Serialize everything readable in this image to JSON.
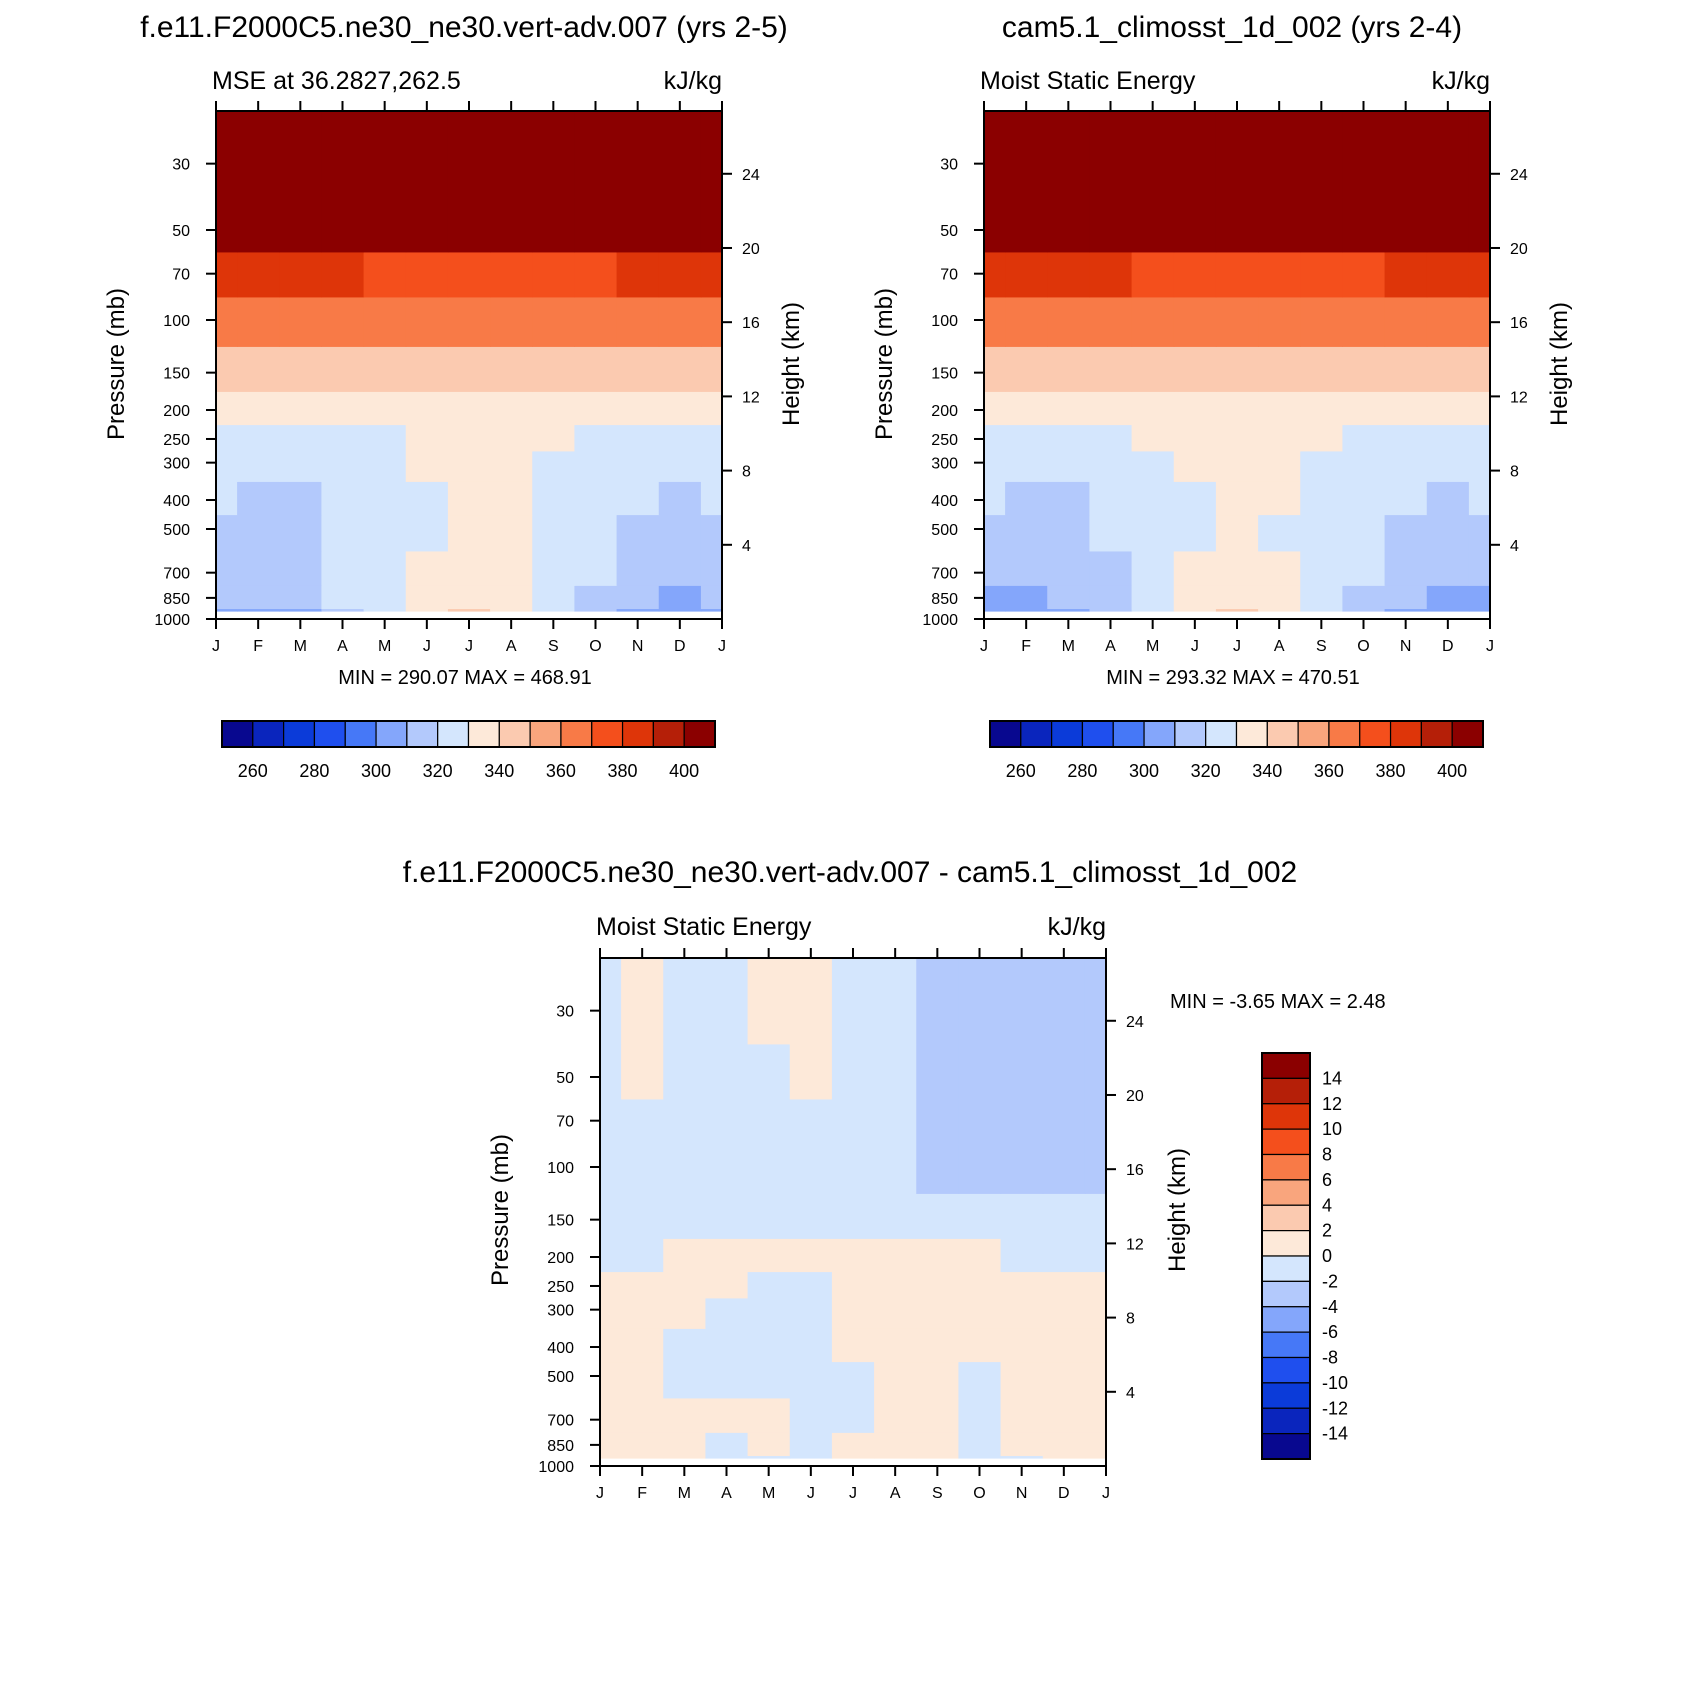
{
  "figure": {
    "months": [
      "J",
      "F",
      "M",
      "A",
      "M",
      "J",
      "J",
      "A",
      "S",
      "O",
      "N",
      "D",
      "J"
    ],
    "pressure_ticks": [
      "30",
      "50",
      "70",
      "100",
      "150",
      "200",
      "250",
      "300",
      "400",
      "500",
      "700",
      "850",
      "1000"
    ],
    "height_ticks": [
      "24",
      "20",
      "16",
      "12",
      "8",
      "4"
    ],
    "ylabel_left": "Pressure (mb)",
    "ylabel_right": "Height (km)",
    "colors_mse": [
      "#08088f",
      "#0a25bd",
      "#0b3bd9",
      "#1f4fee",
      "#4678f7",
      "#84a6fb",
      "#b3c9fc",
      "#d4e6fd",
      "#fde9d9",
      "#fbcab0",
      "#f9a57d",
      "#f87a47",
      "#f44f1c",
      "#de3509",
      "#b51f08",
      "#8b0000"
    ],
    "colors_diff": [
      "#08088f",
      "#0a25bd",
      "#0b3bd9",
      "#1f4fee",
      "#4678f7",
      "#84a6fb",
      "#b3c9fc",
      "#d4e6fd",
      "#fde9d9",
      "#fbcab0",
      "#f9a57d",
      "#f87a47",
      "#f44f1c",
      "#de3509",
      "#b51f08",
      "#8b0000"
    ]
  },
  "panels": [
    {
      "panel_title": "f.e11.F2000C5.ne30_ne30.vert-adv.007 (yrs 2-5)",
      "left_label": "MSE at 36.2827,262.5",
      "units": "kJ/kg",
      "stats": "MIN = 290.07 MAX = 468.91",
      "colorbar_labels": [
        "260",
        "280",
        "300",
        "320",
        "340",
        "360",
        "380",
        "400"
      ]
    },
    {
      "panel_title": "cam5.1_climosst_1d_002 (yrs 2-4)",
      "left_label": "Moist Static Energy",
      "units": "kJ/kg",
      "stats": "MIN = 293.32 MAX = 470.51",
      "colorbar_labels": [
        "260",
        "280",
        "300",
        "320",
        "340",
        "360",
        "380",
        "400"
      ]
    },
    {
      "panel_title": "f.e11.F2000C5.ne30_ne30.vert-adv.007 - cam5.1_climosst_1d_002",
      "left_label": "Moist Static Energy",
      "units": "kJ/kg",
      "stats": "MIN =  -3.65 MAX =   2.48",
      "colorbar_labels": [
        "14",
        "12",
        "10",
        "8",
        "6",
        "4",
        "2",
        "0",
        "-2",
        "-4",
        "-6",
        "-8",
        "-10",
        "-12",
        "-14"
      ]
    }
  ],
  "chart_data": [
    {
      "type": "heatmap",
      "title": "f.e11.F2000C5.ne30_ne30.vert-adv.007 (yrs 2-5)",
      "subtitle": "MSE at 36.2827,262.5",
      "units": "kJ/kg",
      "xlabel": "",
      "ylabel": "Pressure (mb)",
      "ylabel_right": "Height (km)",
      "x": [
        "J",
        "F",
        "M",
        "A",
        "M",
        "J",
        "J",
        "A",
        "S",
        "O",
        "N",
        "D",
        "J"
      ],
      "y": [
        1000,
        850,
        700,
        500,
        400,
        300,
        250,
        200,
        150,
        100,
        70,
        50,
        30
      ],
      "levels": [
        260,
        270,
        280,
        290,
        300,
        310,
        320,
        330,
        340,
        350,
        360,
        370,
        380,
        390,
        400
      ],
      "min": 290.07,
      "max": 468.91,
      "values": [
        [
          306,
          306,
          309,
          318,
          328,
          337,
          342,
          339,
          327,
          315,
          309,
          305,
          306
        ],
        [
          310,
          310,
          312,
          320,
          327,
          334,
          338,
          336,
          328,
          318,
          312,
          309,
          310
        ],
        [
          314,
          314,
          315,
          320,
          325,
          330,
          334,
          332,
          327,
          320,
          315,
          313,
          314
        ],
        [
          318,
          317,
          318,
          320,
          323,
          327,
          331,
          330,
          326,
          321,
          318,
          317,
          318
        ],
        [
          320,
          319,
          319,
          321,
          324,
          328,
          331,
          330,
          327,
          323,
          320,
          319,
          320
        ],
        [
          323,
          322,
          322,
          324,
          327,
          330,
          332,
          331,
          329,
          326,
          323,
          322,
          323
        ],
        [
          326,
          326,
          326,
          327,
          329,
          332,
          334,
          333,
          331,
          328,
          327,
          326,
          326
        ],
        [
          333,
          333,
          333,
          334,
          336,
          338,
          339,
          338,
          337,
          336,
          334,
          333,
          333
        ],
        [
          345,
          345,
          345,
          345,
          346,
          348,
          349,
          348,
          347,
          346,
          345,
          345,
          345
        ],
        [
          360,
          360,
          360,
          360,
          360,
          361,
          361,
          361,
          361,
          360,
          360,
          360,
          360
        ],
        [
          382,
          382,
          381,
          380,
          379,
          378,
          377,
          377,
          378,
          379,
          380,
          381,
          382
        ],
        [
          430,
          429,
          428,
          426,
          424,
          423,
          422,
          423,
          424,
          426,
          428,
          429,
          430
        ],
        [
          465,
          465,
          464,
          462,
          460,
          458,
          457,
          458,
          459,
          461,
          463,
          464,
          465
        ]
      ]
    },
    {
      "type": "heatmap",
      "title": "cam5.1_climosst_1d_002 (yrs 2-4)",
      "subtitle": "Moist Static Energy",
      "units": "kJ/kg",
      "xlabel": "",
      "ylabel": "Pressure (mb)",
      "ylabel_right": "Height (km)",
      "x": [
        "J",
        "F",
        "M",
        "A",
        "M",
        "J",
        "J",
        "A",
        "S",
        "O",
        "N",
        "D",
        "J"
      ],
      "y": [
        1000,
        850,
        700,
        500,
        400,
        300,
        250,
        200,
        150,
        100,
        70,
        50,
        30
      ],
      "levels": [
        260,
        270,
        280,
        290,
        300,
        310,
        320,
        330,
        340,
        350,
        360,
        370,
        380,
        390,
        400
      ],
      "min": 293.32,
      "max": 470.51,
      "values": [
        [
          305,
          305,
          308,
          318,
          328,
          337,
          341,
          338,
          328,
          316,
          309,
          304,
          305
        ],
        [
          309,
          309,
          311,
          319,
          327,
          334,
          337,
          335,
          328,
          318,
          312,
          308,
          309
        ],
        [
          313,
          313,
          314,
          319,
          325,
          330,
          333,
          331,
          327,
          320,
          315,
          312,
          313
        ],
        [
          317,
          317,
          318,
          320,
          324,
          328,
          330,
          329,
          326,
          321,
          318,
          316,
          317
        ],
        [
          320,
          319,
          319,
          321,
          325,
          329,
          331,
          330,
          327,
          323,
          320,
          319,
          320
        ],
        [
          323,
          322,
          322,
          324,
          328,
          331,
          333,
          332,
          329,
          326,
          323,
          322,
          323
        ],
        [
          326,
          326,
          326,
          328,
          330,
          333,
          334,
          333,
          331,
          329,
          327,
          326,
          326
        ],
        [
          333,
          333,
          333,
          334,
          336,
          338,
          339,
          338,
          337,
          336,
          334,
          333,
          333
        ],
        [
          345,
          345,
          345,
          345,
          346,
          348,
          349,
          348,
          347,
          346,
          345,
          345,
          345
        ],
        [
          360,
          360,
          360,
          360,
          360,
          361,
          362,
          362,
          361,
          360,
          360,
          360,
          360
        ],
        [
          382,
          382,
          381,
          380,
          379,
          378,
          377,
          377,
          378,
          379,
          380,
          381,
          382
        ],
        [
          431,
          430,
          429,
          427,
          425,
          424,
          423,
          424,
          425,
          427,
          429,
          430,
          431
        ],
        [
          467,
          466,
          465,
          463,
          461,
          459,
          458,
          459,
          460,
          462,
          464,
          466,
          467
        ]
      ]
    },
    {
      "type": "heatmap",
      "title": "f.e11.F2000C5.ne30_ne30.vert-adv.007 - cam5.1_climosst_1d_002",
      "subtitle": "Moist Static Energy",
      "units": "kJ/kg",
      "xlabel": "",
      "ylabel": "Pressure (mb)",
      "ylabel_right": "Height (km)",
      "x": [
        "J",
        "F",
        "M",
        "A",
        "M",
        "J",
        "J",
        "A",
        "S",
        "O",
        "N",
        "D",
        "J"
      ],
      "y": [
        1000,
        850,
        700,
        500,
        400,
        300,
        250,
        200,
        150,
        100,
        70,
        50,
        30
      ],
      "levels": [
        -14,
        -12,
        -10,
        -8,
        -6,
        -4,
        -2,
        0,
        2,
        4,
        6,
        8,
        10,
        12,
        14
      ],
      "min": -3.65,
      "max": 2.48,
      "values": [
        [
          0.3,
          0.4,
          0.3,
          -0.3,
          -0.3,
          -0.5,
          0.3,
          0.4,
          0.3,
          -0.4,
          -0.3,
          0.6,
          0.1
        ],
        [
          0.5,
          0.6,
          0.4,
          -0.4,
          0.4,
          -0.4,
          0.4,
          0.5,
          0.5,
          -0.5,
          0.5,
          0.7,
          0.5
        ],
        [
          0.6,
          0.7,
          0.5,
          0.3,
          0.5,
          -0.3,
          -0.4,
          0.4,
          0.6,
          -0.5,
          0.6,
          0.6,
          0.6
        ],
        [
          0.7,
          0.6,
          -0.4,
          -0.6,
          -0.5,
          -0.6,
          -0.3,
          0.3,
          0.7,
          -0.6,
          0.6,
          0.5,
          0.7
        ],
        [
          0.6,
          0.5,
          -0.3,
          -0.5,
          -0.7,
          -0.8,
          0.3,
          0.4,
          0.8,
          0.5,
          0.7,
          0.6,
          0.6
        ],
        [
          0.6,
          0.5,
          0.4,
          -0.2,
          -0.6,
          -0.9,
          0.4,
          0.5,
          0.8,
          0.6,
          0.7,
          0.6,
          0.5
        ],
        [
          0.5,
          0.6,
          0.5,
          0.4,
          -0.5,
          -0.7,
          0.4,
          0.6,
          0.9,
          0.7,
          0.6,
          0.5,
          0.4
        ],
        [
          -0.4,
          -0.3,
          0.4,
          0.5,
          0.5,
          0.4,
          0.5,
          0.4,
          0.6,
          0.3,
          -0.3,
          -0.5,
          -0.4
        ],
        [
          -0.5,
          -0.6,
          -0.5,
          -0.4,
          -0.3,
          -0.5,
          -0.6,
          -0.8,
          -1.0,
          -1.1,
          -1.0,
          -0.9,
          -0.8
        ],
        [
          -0.6,
          -0.5,
          -0.7,
          -0.8,
          -0.9,
          -0.7,
          -0.6,
          -1.5,
          -2.4,
          -2.6,
          -2.4,
          -2.1,
          -2.4
        ],
        [
          -0.5,
          -0.6,
          -0.8,
          -0.8,
          -0.7,
          -0.6,
          -0.7,
          -1.6,
          -2.7,
          -2.6,
          -2.8,
          -2.4,
          -2.6
        ],
        [
          -0.4,
          0.4,
          -0.6,
          -0.7,
          -0.5,
          0.4,
          -0.6,
          -1.5,
          -2.8,
          -2.9,
          -2.5,
          -2.6,
          -2.7
        ],
        [
          -0.5,
          0.5,
          -0.6,
          -0.5,
          0.4,
          0.5,
          -0.5,
          -1.4,
          -2.7,
          -2.8,
          -2.6,
          -2.5,
          -2.8
        ]
      ]
    }
  ]
}
